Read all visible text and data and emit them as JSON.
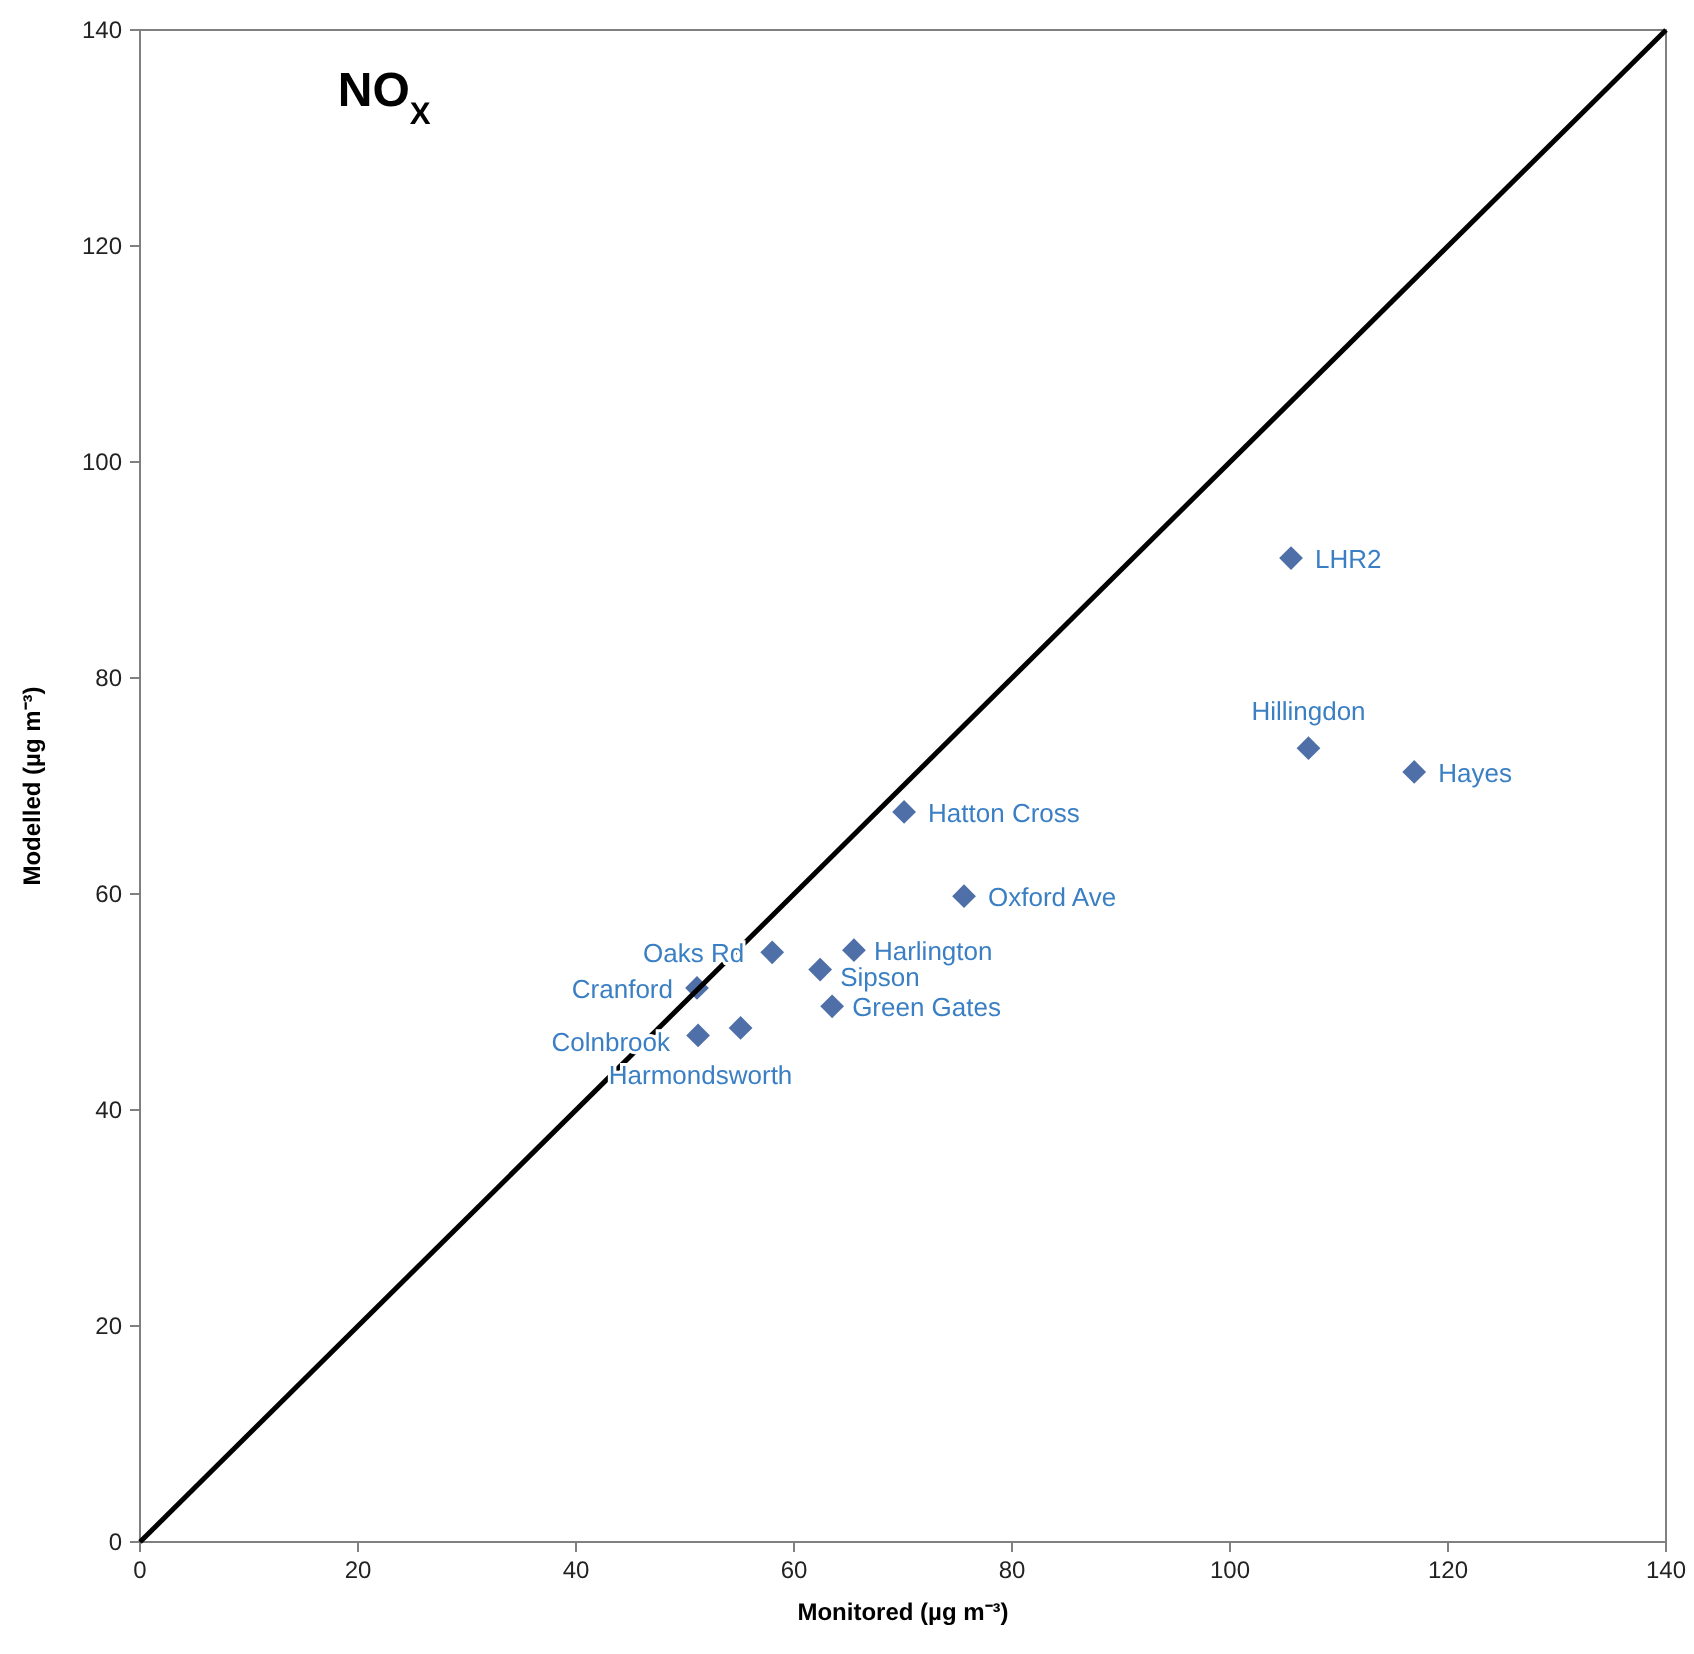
{
  "chart_data": {
    "type": "scatter",
    "title": "NO$_{X}$",
    "xlabel": "Monitored (µg m⁻³)",
    "ylabel": "Modelled (µg m⁻³)",
    "xlim": [
      0,
      140
    ],
    "ylim": [
      0,
      140
    ],
    "xticks": [
      0,
      20,
      40,
      60,
      80,
      100,
      120,
      140
    ],
    "yticks": [
      0,
      20,
      40,
      60,
      80,
      100,
      120,
      140
    ],
    "grid": false,
    "series": [
      {
        "type": "scatter",
        "color": "#4f6fa8",
        "marker": "diamond",
        "x": [
          105.6,
          107.2,
          116.9,
          70.1,
          75.6,
          65.5,
          58.0,
          62.4,
          51.1,
          63.5,
          55.1,
          51.2
        ],
        "values": [
          91.1,
          73.5,
          71.3,
          67.6,
          59.8,
          54.8,
          54.6,
          53.0,
          51.3,
          49.6,
          47.6,
          46.9
        ]
      },
      {
        "type": "line",
        "color": "#000000",
        "marker": "none",
        "line_style": "solid",
        "x": [
          0,
          140
        ],
        "values": [
          0,
          140
        ]
      }
    ],
    "annotations": [
      {
        "text": "LHR2",
        "x": 105.6,
        "y": 91.1
      },
      {
        "text": "Hillingdon",
        "x": 107.2,
        "y": 73.5
      },
      {
        "text": "Hayes",
        "x": 116.9,
        "y": 71.3
      },
      {
        "text": "Hatton Cross",
        "x": 70.1,
        "y": 67.6
      },
      {
        "text": "Oxford Ave",
        "x": 75.6,
        "y": 59.8
      },
      {
        "text": "Harlington",
        "x": 65.5,
        "y": 54.8
      },
      {
        "text": "Oaks Rd",
        "x": 58.0,
        "y": 54.6
      },
      {
        "text": "Sipson",
        "x": 62.4,
        "y": 53.0
      },
      {
        "text": "Cranford",
        "x": 51.1,
        "y": 51.3
      },
      {
        "text": "Green Gates",
        "x": 63.5,
        "y": 49.6
      },
      {
        "text": "Harmondsworth",
        "x": 55.1,
        "y": 47.6
      },
      {
        "text": "Colnbrook",
        "x": 51.2,
        "y": 46.9
      }
    ]
  }
}
